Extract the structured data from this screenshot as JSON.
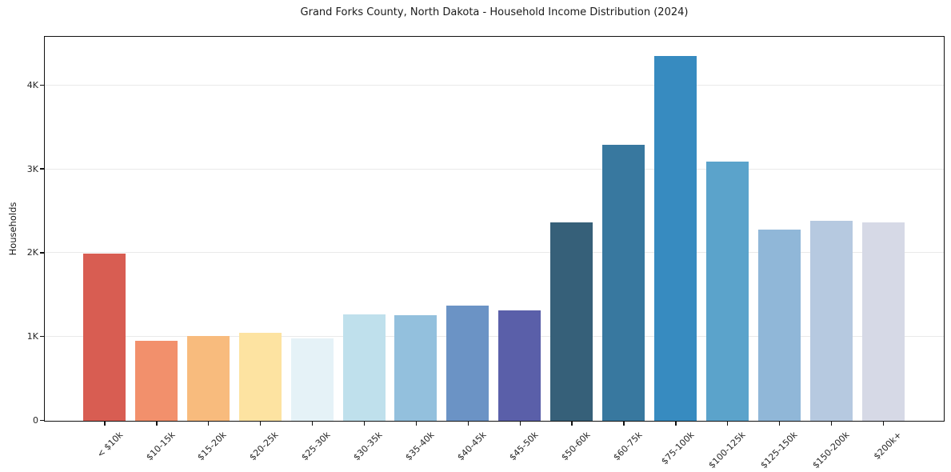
{
  "chart_data": {
    "type": "bar",
    "title": "Grand Forks County, North Dakota - Household Income Distribution (2024)",
    "xlabel": "",
    "ylabel": "Households",
    "categories": [
      "< $10k",
      "$10-15k",
      "$15-20k",
      "$20-25k",
      "$25-30k",
      "$30-35k",
      "$35-40k",
      "$40-45k",
      "$45-50k",
      "$50-60k",
      "$60-75k",
      "$75-100k",
      "$100-125k",
      "$125-150k",
      "$150-200k",
      "$200k+"
    ],
    "values": [
      1990,
      950,
      1015,
      1050,
      980,
      1270,
      1255,
      1375,
      1320,
      2370,
      3290,
      4350,
      3090,
      2280,
      2390,
      2370
    ],
    "bar_colors": [
      "#d85d52",
      "#f2906c",
      "#f8bb7d",
      "#fde3a1",
      "#e5f2f7",
      "#bfe0ec",
      "#93c0dd",
      "#6b93c5",
      "#5a5fa9",
      "#366079",
      "#38789f",
      "#378bc0",
      "#5ba3cb",
      "#90b7d8",
      "#b6c9e0",
      "#d6d9e6"
    ],
    "yticks": [
      {
        "value": 0,
        "label": "0"
      },
      {
        "value": 1000,
        "label": "1K"
      },
      {
        "value": 2000,
        "label": "2K"
      },
      {
        "value": 3000,
        "label": "3K"
      },
      {
        "value": 4000,
        "label": "4K"
      }
    ],
    "ylim": [
      0,
      4570
    ],
    "grid": "horizontal",
    "legend": "none",
    "background_color": "#ffffff",
    "axis_color": "#111111",
    "grid_color": "#eaeaea"
  }
}
